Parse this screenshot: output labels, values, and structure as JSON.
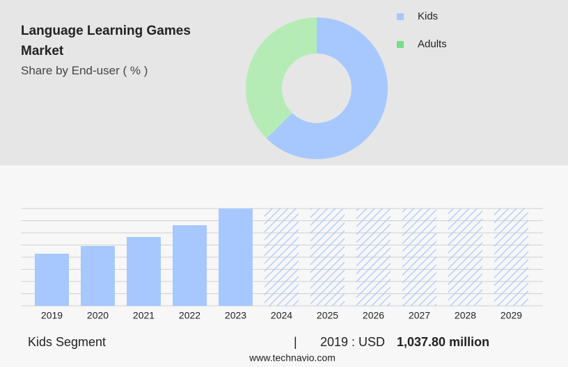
{
  "chart_data": [
    {
      "type": "pie",
      "title": "Language Learning Games Market",
      "subtitle": "Share by End-user ( % )",
      "categories": [
        "Kids",
        "Adults"
      ],
      "values": [
        62.5,
        37.5
      ],
      "colors": [
        "#a6c8ff",
        "#b5ecb5"
      ],
      "legend_colors": [
        "#a6c8ff",
        "#77dd88"
      ],
      "donut": true
    },
    {
      "type": "bar",
      "categories": [
        "2019",
        "2020",
        "2021",
        "2022",
        "2023",
        "2024",
        "2025",
        "2026",
        "2027",
        "2028",
        "2029"
      ],
      "values": [
        1037.8,
        1190,
        1370,
        1605,
        1937,
        null,
        null,
        null,
        null,
        null,
        null
      ],
      "color": "#a6c8ff",
      "ylim": [
        0,
        1937
      ],
      "grid": true
    }
  ],
  "footer": {
    "segment": "Kids Segment",
    "separator": "|",
    "year_label": "2019 : USD",
    "value": "1,037.80 million",
    "source": "www.technavio.com"
  }
}
